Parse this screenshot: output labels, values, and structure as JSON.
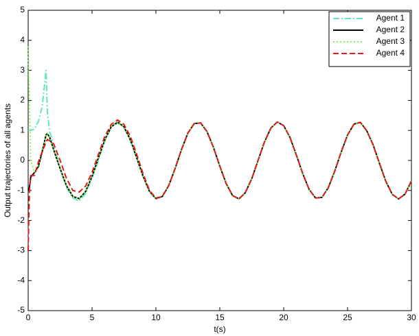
{
  "chart_data": {
    "type": "line",
    "x_label": "t(s)",
    "y_label": "Output trajectories of all agents",
    "x": [
      0,
      0.1,
      0.2,
      0.5,
      0.8,
      1.1,
      1.4,
      1.5,
      1.7,
      2,
      2.5,
      3,
      3.5,
      4,
      4.5,
      5,
      5.5,
      6,
      6.5,
      7,
      7.5,
      8,
      8.5,
      9,
      9.5,
      10,
      10.5,
      11,
      11.5,
      12,
      12.5,
      13,
      13.5,
      14,
      14.5,
      15,
      15.5,
      16,
      16.5,
      17,
      17.5,
      18,
      18.5,
      19,
      19.5,
      20,
      20.5,
      21,
      21.5,
      22,
      22.5,
      23,
      23.5,
      24,
      24.5,
      25,
      25.5,
      26,
      26.5,
      27,
      27.5,
      28,
      28.5,
      29,
      29.5,
      30
    ],
    "series": [
      {
        "name": "Agent 1",
        "color": "#5fe6c8",
        "style": "dashdot",
        "values": [
          1.0,
          1.0,
          1.0,
          1.05,
          1.3,
          1.8,
          3.0,
          1.6,
          0.95,
          0.5,
          -0.25,
          -0.9,
          -1.25,
          -1.35,
          -1.1,
          -0.6,
          0,
          0.65,
          1.1,
          1.25,
          1.1,
          0.65,
          0.05,
          -0.55,
          -1.05,
          -1.28,
          -1.2,
          -0.84,
          -0.27,
          0.36,
          0.91,
          1.23,
          1.25,
          0.96,
          0.44,
          -0.19,
          -0.77,
          -1.17,
          -1.28,
          -1.07,
          -0.61,
          0.01,
          0.62,
          1.08,
          1.28,
          1.16,
          0.76,
          0.17,
          -0.45,
          -0.97,
          -1.25,
          -1.23,
          -0.9,
          -0.35,
          0.28,
          0.85,
          1.21,
          1.27,
          0.99,
          0.52,
          -0.1,
          -0.7,
          -1.13,
          -1.28,
          -1.12,
          -0.68
        ]
      },
      {
        "name": "Agent 2",
        "color": "#000000",
        "style": "solid",
        "values": [
          -1.0,
          -0.9,
          -0.55,
          -0.4,
          -0.2,
          0.3,
          0.85,
          0.9,
          0.75,
          0.35,
          -0.27,
          -0.84,
          -1.2,
          -1.27,
          -1.03,
          -0.53,
          0.09,
          0.69,
          1.12,
          1.28,
          1.12,
          0.69,
          0.09,
          -0.53,
          -1.03,
          -1.27,
          -1.2,
          -0.84,
          -0.27,
          0.36,
          0.91,
          1.23,
          1.25,
          0.96,
          0.44,
          -0.19,
          -0.77,
          -1.17,
          -1.28,
          -1.07,
          -0.61,
          0.01,
          0.62,
          1.08,
          1.28,
          1.16,
          0.76,
          0.17,
          -0.45,
          -0.97,
          -1.25,
          -1.23,
          -0.9,
          -0.35,
          0.28,
          0.85,
          1.21,
          1.27,
          0.99,
          0.52,
          -0.1,
          -0.7,
          -1.13,
          -1.28,
          -1.12,
          -0.68
        ]
      },
      {
        "name": "Agent 3",
        "color": "#7cfc4c",
        "style": "dotted",
        "values": [
          3.8,
          2.0,
          0.0,
          -0.4,
          -0.15,
          0.35,
          0.85,
          0.9,
          0.75,
          0.35,
          -0.27,
          -0.84,
          -1.2,
          -1.27,
          -1.03,
          -0.53,
          0.09,
          0.69,
          1.12,
          1.28,
          1.12,
          0.69,
          0.09,
          -0.53,
          -1.03,
          -1.27,
          -1.2,
          -0.84,
          -0.27,
          0.36,
          0.91,
          1.23,
          1.25,
          0.96,
          0.44,
          -0.19,
          -0.77,
          -1.17,
          -1.28,
          -1.07,
          -0.61,
          0.01,
          0.62,
          1.08,
          1.28,
          1.16,
          0.76,
          0.17,
          -0.45,
          -0.97,
          -1.25,
          -1.23,
          -0.9,
          -0.35,
          0.28,
          0.85,
          1.21,
          1.27,
          0.99,
          0.52,
          -0.1,
          -0.7,
          -1.13,
          -1.28,
          -1.12,
          -0.68
        ]
      },
      {
        "name": "Agent 4",
        "color": "#e41a1a",
        "style": "dashed",
        "values": [
          -3.0,
          -1.0,
          -0.5,
          -0.5,
          -0.05,
          0.3,
          0.6,
          0.7,
          0.65,
          0.55,
          0,
          -0.6,
          -1.0,
          -1.05,
          -0.85,
          -0.4,
          0.2,
          0.8,
          1.2,
          1.35,
          1.2,
          0.8,
          0.2,
          -0.45,
          -1.0,
          -1.25,
          -1.2,
          -0.84,
          -0.27,
          0.36,
          0.91,
          1.23,
          1.25,
          0.96,
          0.44,
          -0.19,
          -0.77,
          -1.17,
          -1.28,
          -1.07,
          -0.61,
          0.01,
          0.62,
          1.08,
          1.28,
          1.16,
          0.76,
          0.17,
          -0.45,
          -0.97,
          -1.25,
          -1.23,
          -0.9,
          -0.35,
          0.28,
          0.85,
          1.21,
          1.27,
          0.99,
          0.52,
          -0.1,
          -0.7,
          -1.13,
          -1.28,
          -1.12,
          -0.68
        ]
      }
    ],
    "xlim": [
      0,
      30
    ],
    "xticks": [
      0,
      5,
      10,
      15,
      20,
      25,
      30
    ],
    "ylim": [
      -5,
      5
    ],
    "yticks": [
      -5,
      -4,
      -3,
      -2,
      -1,
      0,
      1,
      2,
      3,
      4,
      5
    ],
    "legend": "upper right"
  }
}
